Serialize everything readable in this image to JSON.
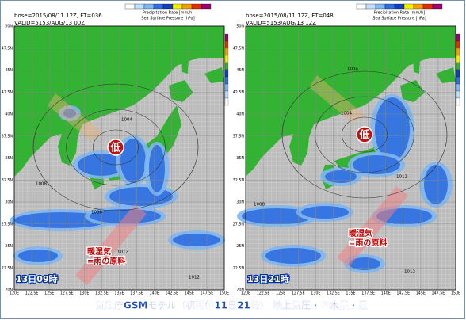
{
  "panels": [
    {
      "base": "bose=2015/08/11 12Z, FT=036",
      "valid": "VALID=5153/AUG/13 00Z",
      "precip_title": "Precipitation Rate [mm/h]",
      "pressure_title": "Sea Surface Pressure [hPa]",
      "low": "低",
      "moist": "暖湿気",
      "moist_note": "=雨の原料",
      "time": "13日09時",
      "isobars": [
        "1004",
        "1008",
        "1008",
        "1012",
        "1012"
      ]
    },
    {
      "base": "bose=2015/08/11 12Z, FT=048",
      "valid": "VALID=5153/AUG/13 12Z",
      "precip_title": "Precipitation Rate [mm/h]",
      "pressure_title": "Sea Surface Pressure [hPa]",
      "low": "低",
      "moist": "暖湿気",
      "moist_note": "=雨の原料",
      "time": "13日21時",
      "isobars": [
        "1004",
        "1004",
        "1008",
        "1012",
        "1012"
      ]
    }
  ],
  "lat_labels": [
    "50N",
    "47.5N",
    "45N",
    "42.5N",
    "40N",
    "37.5N",
    "35N",
    "32.5N",
    "30N",
    "27.5N",
    "25N",
    "22.5N",
    "20N"
  ],
  "lon_labels": [
    "120E",
    "122.5E",
    "125E",
    "127.5E",
    "130E",
    "132.5E",
    "135E",
    "137.5E",
    "140E",
    "142.5E",
    "145E",
    "147.5E",
    "150E"
  ],
  "caption": "気象庁GSMモデル（初期値11日21時） 地上気圧・降水量・風"
}
